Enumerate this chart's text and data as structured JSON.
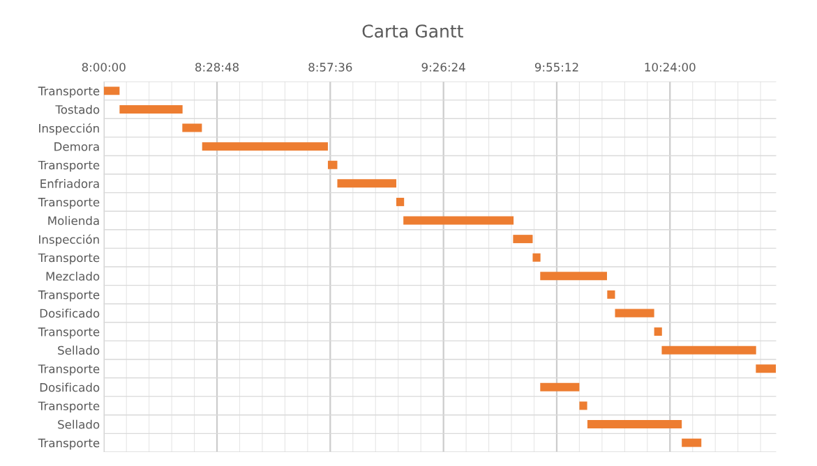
{
  "chart_data": {
    "type": "bar",
    "orientation": "horizontal",
    "title": "Carta Gantt",
    "categories": [
      "Transporte",
      "Tostado",
      "Inspección",
      "Demora",
      "Transporte",
      "Enfriadora",
      "Transporte",
      "Molienda",
      "Inspección",
      "Transporte",
      "Mezclado",
      "Transporte",
      "Dosificado",
      "Transporte",
      "Sellado",
      "Transporte",
      "Dosificado",
      "Transporte",
      "Sellado",
      "Transporte"
    ],
    "base": [
      8.0,
      8.067,
      8.333,
      8.417,
      8.95,
      8.99,
      9.24,
      9.27,
      9.735,
      9.818,
      9.85,
      10.134,
      10.167,
      10.333,
      10.365,
      10.764,
      9.85,
      10.016,
      10.05,
      10.45
    ],
    "values": [
      0.067,
      0.267,
      0.083,
      0.533,
      0.04,
      0.25,
      0.033,
      0.467,
      0.083,
      0.033,
      0.283,
      0.033,
      0.166,
      0.033,
      0.4,
      0.085,
      0.166,
      0.033,
      0.4,
      0.083
    ],
    "color": "#ed7d31",
    "xlim": [
      8.0,
      10.85
    ],
    "xticks": [
      {
        "value": 8.0,
        "label": "8:00:00"
      },
      {
        "value": 8.48,
        "label": "8:28:48"
      },
      {
        "value": 8.96,
        "label": "8:57:36"
      },
      {
        "value": 9.44,
        "label": "9:26:24"
      },
      {
        "value": 9.92,
        "label": "9:55:12"
      },
      {
        "value": 10.4,
        "label": "10:24:00"
      }
    ],
    "grid": true
  }
}
